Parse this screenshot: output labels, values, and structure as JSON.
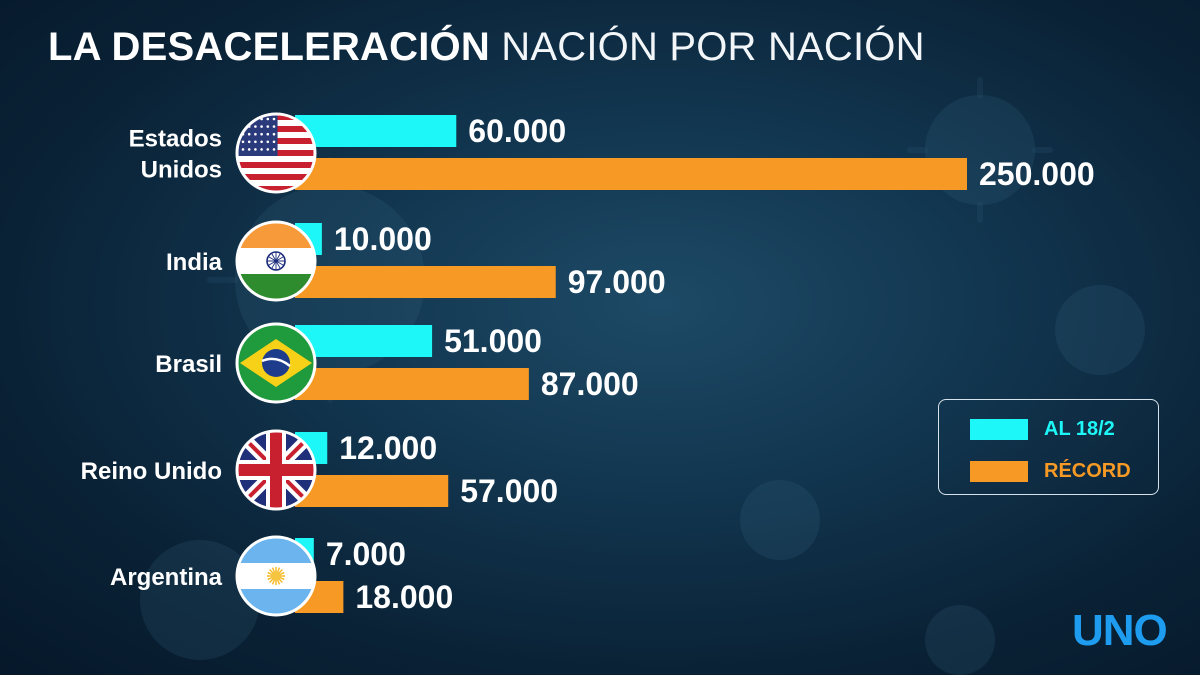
{
  "title": {
    "bold": "LA DESACELERACIÓN",
    "light": "NACIÓN POR NACIÓN"
  },
  "brand": {
    "text": "UNO",
    "color": "#1e9cf0"
  },
  "colors": {
    "cyan": "#1ef7f7",
    "orange": "#f79a25",
    "background": "#0d2a40"
  },
  "chart_data": {
    "type": "bar",
    "orientation": "horizontal",
    "categories": [
      "Estados Unidos",
      "India",
      "Brasil",
      "Reino Unido",
      "Argentina"
    ],
    "category_lines": [
      [
        "Estados",
        "Unidos"
      ],
      [
        "India"
      ],
      [
        "Brasil"
      ],
      [
        "Reino Unido"
      ],
      [
        "Argentina"
      ]
    ],
    "flags": [
      "usa-flag-icon",
      "india-flag-icon",
      "brazil-flag-icon",
      "uk-flag-icon",
      "argentina-flag-icon"
    ],
    "series": [
      {
        "name": "AL 18/2",
        "color": "#1ef7f7",
        "values": [
          60000,
          10000,
          51000,
          12000,
          7000
        ],
        "labels": [
          "60.000",
          "10.000",
          "51.000",
          "12.000",
          "7.000"
        ]
      },
      {
        "name": "RÉCORD",
        "color": "#f79a25",
        "values": [
          250000,
          97000,
          87000,
          57000,
          18000
        ],
        "labels": [
          "250.000",
          "97.000",
          "87.000",
          "57.000",
          "18.000"
        ]
      }
    ],
    "legend": {
      "position": "right",
      "items": [
        "AL 18/2",
        "RÉCORD"
      ]
    },
    "grid": false
  }
}
